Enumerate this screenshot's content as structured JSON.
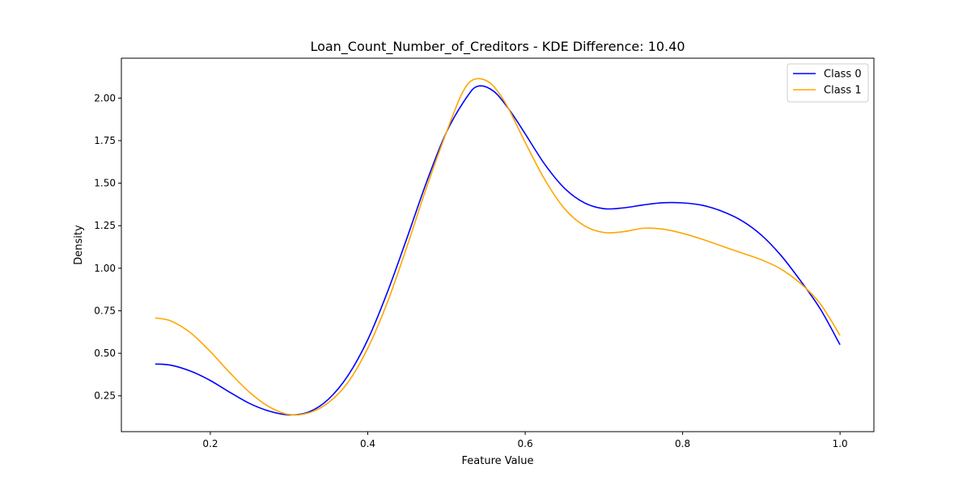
{
  "chart_data": {
    "type": "line",
    "title": "Loan_Count_Number_of_Creditors - KDE Difference: 10.40",
    "xlabel": "Feature Value",
    "ylabel": "Density",
    "xlim": [
      0.087,
      1.043
    ],
    "ylim": [
      0.0395,
      2.2345
    ],
    "x_ticks": [
      {
        "value": 0.2,
        "label": "0.2"
      },
      {
        "value": 0.4,
        "label": "0.4"
      },
      {
        "value": 0.6,
        "label": "0.6"
      },
      {
        "value": 0.8,
        "label": "0.8"
      },
      {
        "value": 1.0,
        "label": "1.0"
      }
    ],
    "y_ticks": [
      {
        "value": 0.25,
        "label": "0.25"
      },
      {
        "value": 0.5,
        "label": "0.50"
      },
      {
        "value": 0.75,
        "label": "0.75"
      },
      {
        "value": 1.0,
        "label": "1.00"
      },
      {
        "value": 1.25,
        "label": "1.25"
      },
      {
        "value": 1.5,
        "label": "1.50"
      },
      {
        "value": 1.75,
        "label": "1.75"
      },
      {
        "value": 2.0,
        "label": "2.00"
      }
    ],
    "grid": false,
    "legend_position": "top-right",
    "series": [
      {
        "name": "Class 0",
        "color": "#0000ff",
        "points": [
          [
            0.13,
            0.437
          ],
          [
            0.15,
            0.43
          ],
          [
            0.175,
            0.395
          ],
          [
            0.2,
            0.34
          ],
          [
            0.225,
            0.27
          ],
          [
            0.25,
            0.205
          ],
          [
            0.275,
            0.16
          ],
          [
            0.3,
            0.138
          ],
          [
            0.325,
            0.155
          ],
          [
            0.35,
            0.23
          ],
          [
            0.375,
            0.37
          ],
          [
            0.4,
            0.58
          ],
          [
            0.425,
            0.86
          ],
          [
            0.45,
            1.18
          ],
          [
            0.475,
            1.51
          ],
          [
            0.5,
            1.8
          ],
          [
            0.525,
            2.0
          ],
          [
            0.54,
            2.07
          ],
          [
            0.56,
            2.04
          ],
          [
            0.58,
            1.93
          ],
          [
            0.6,
            1.79
          ],
          [
            0.625,
            1.61
          ],
          [
            0.65,
            1.47
          ],
          [
            0.675,
            1.385
          ],
          [
            0.7,
            1.35
          ],
          [
            0.725,
            1.355
          ],
          [
            0.75,
            1.372
          ],
          [
            0.775,
            1.385
          ],
          [
            0.8,
            1.384
          ],
          [
            0.825,
            1.37
          ],
          [
            0.85,
            1.335
          ],
          [
            0.875,
            1.28
          ],
          [
            0.9,
            1.195
          ],
          [
            0.925,
            1.075
          ],
          [
            0.95,
            0.925
          ],
          [
            0.975,
            0.76
          ],
          [
            1.0,
            0.55
          ]
        ]
      },
      {
        "name": "Class 1",
        "color": "#ffa500",
        "points": [
          [
            0.13,
            0.708
          ],
          [
            0.15,
            0.69
          ],
          [
            0.175,
            0.62
          ],
          [
            0.2,
            0.51
          ],
          [
            0.225,
            0.385
          ],
          [
            0.25,
            0.27
          ],
          [
            0.275,
            0.185
          ],
          [
            0.3,
            0.14
          ],
          [
            0.325,
            0.15
          ],
          [
            0.35,
            0.21
          ],
          [
            0.375,
            0.33
          ],
          [
            0.4,
            0.53
          ],
          [
            0.425,
            0.8
          ],
          [
            0.45,
            1.13
          ],
          [
            0.475,
            1.48
          ],
          [
            0.5,
            1.8
          ],
          [
            0.52,
            2.03
          ],
          [
            0.535,
            2.11
          ],
          [
            0.555,
            2.09
          ],
          [
            0.575,
            1.97
          ],
          [
            0.6,
            1.74
          ],
          [
            0.625,
            1.52
          ],
          [
            0.65,
            1.35
          ],
          [
            0.675,
            1.25
          ],
          [
            0.7,
            1.21
          ],
          [
            0.725,
            1.215
          ],
          [
            0.75,
            1.235
          ],
          [
            0.775,
            1.23
          ],
          [
            0.8,
            1.205
          ],
          [
            0.825,
            1.17
          ],
          [
            0.85,
            1.13
          ],
          [
            0.875,
            1.09
          ],
          [
            0.9,
            1.05
          ],
          [
            0.925,
            0.995
          ],
          [
            0.95,
            0.91
          ],
          [
            0.975,
            0.79
          ],
          [
            1.0,
            0.605
          ]
        ]
      }
    ]
  }
}
